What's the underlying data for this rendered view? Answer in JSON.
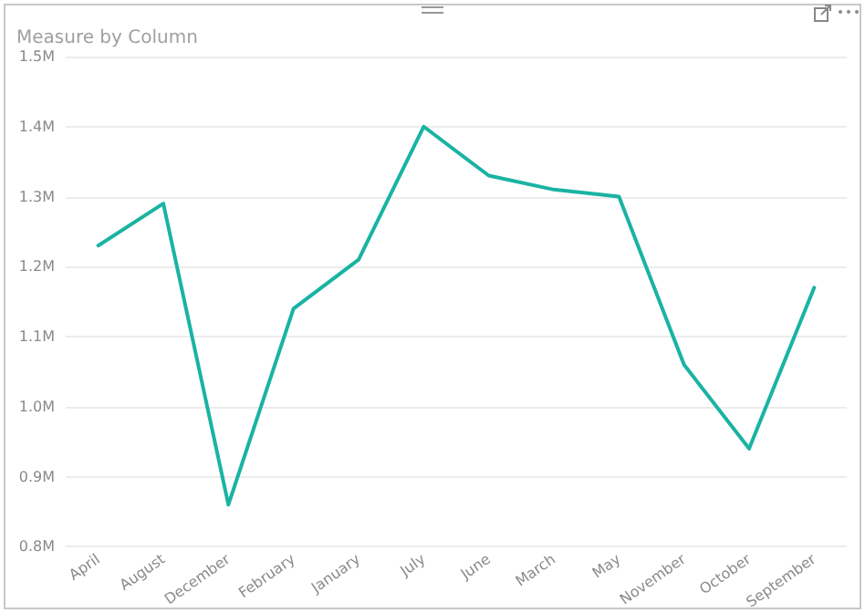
{
  "chart_data": {
    "type": "line",
    "title": "Measure by Column",
    "categories": [
      "April",
      "August",
      "December",
      "February",
      "January",
      "July",
      "June",
      "March",
      "May",
      "November",
      "October",
      "September"
    ],
    "series": [
      {
        "color": "#1ab3a3",
        "values": [
          1230000,
          1290000,
          860000,
          1140000,
          1210000,
          1400000,
          1330000,
          1310000,
          1300000,
          1060000,
          940000,
          1170000
        ]
      }
    ],
    "ylim": [
      800000,
      1500000
    ],
    "yticks": [
      {
        "value": 800000,
        "label": "0.8M"
      },
      {
        "value": 900000,
        "label": "0.9M"
      },
      {
        "value": 1000000,
        "label": "1.0M"
      },
      {
        "value": 1100000,
        "label": "1.1M"
      },
      {
        "value": 1200000,
        "label": "1.2M"
      },
      {
        "value": 1300000,
        "label": "1.3M"
      },
      {
        "value": 1400000,
        "label": "1.4M"
      },
      {
        "value": 1500000,
        "label": "1.5M"
      }
    ],
    "grid": "y",
    "marker": "none",
    "line_style": "solid"
  }
}
